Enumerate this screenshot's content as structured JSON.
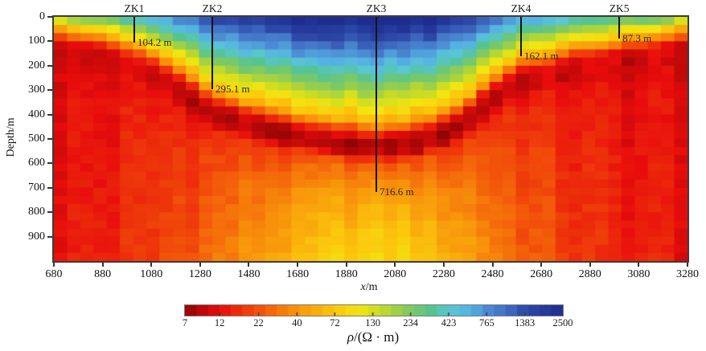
{
  "labels": {
    "y_axis": "Depth/m",
    "x_axis_italic": "x",
    "x_axis_rest": "/m",
    "colorbar_italic": "ρ",
    "colorbar_rest": "/(Ω · m)"
  },
  "chart_data": {
    "type": "heatmap",
    "title": "",
    "xlabel": "x/m",
    "ylabel": "Depth/m",
    "colorbar_label": "ρ/(Ω · m)",
    "x_range": [
      680,
      3280
    ],
    "depth_range": [
      0,
      1000
    ],
    "x_ticks": [
      680,
      880,
      1080,
      1280,
      1480,
      1680,
      1880,
      2080,
      2280,
      2480,
      2680,
      2880,
      3080,
      3280
    ],
    "depth_ticks": [
      0,
      100,
      200,
      300,
      400,
      500,
      600,
      700,
      800,
      900
    ],
    "colorbar": {
      "log_scale": true,
      "ticks": [
        7,
        12,
        22,
        40,
        72,
        130,
        234,
        423,
        765,
        1383,
        2500
      ],
      "segments": 33
    },
    "colormap_stops": [
      [
        7,
        "#8f0505"
      ],
      [
        12,
        "#e80c0c"
      ],
      [
        22,
        "#f2510a"
      ],
      [
        40,
        "#f8950b"
      ],
      [
        72,
        "#fbc60d"
      ],
      [
        105,
        "#f2e611"
      ],
      [
        140,
        "#cbdc23"
      ],
      [
        234,
        "#7ec963"
      ],
      [
        330,
        "#54c493"
      ],
      [
        423,
        "#5ac7d4"
      ],
      [
        600,
        "#55b1e2"
      ],
      [
        765,
        "#4b8cd3"
      ],
      [
        1100,
        "#3e68c0"
      ],
      [
        1383,
        "#2e4aa8"
      ],
      [
        2500,
        "#1d2d8f"
      ]
    ],
    "grid": {
      "cols": 48,
      "rows": 30
    },
    "boreholes": [
      {
        "name": "ZK1",
        "x": 1010,
        "depth_m": 104.2,
        "label": "104.2 m"
      },
      {
        "name": "ZK2",
        "x": 1330,
        "depth_m": 295.1,
        "label": "295.1 m"
      },
      {
        "name": "ZK3",
        "x": 2003,
        "depth_m": 716.6,
        "label": "716.6 m"
      },
      {
        "name": "ZK4",
        "x": 2597,
        "depth_m": 162.1,
        "label": "162.1 m"
      },
      {
        "name": "ZK5",
        "x": 3000,
        "depth_m": 87.3,
        "label": "87.3 m"
      }
    ],
    "interface_depth_profile": [
      [
        680,
        40
      ],
      [
        780,
        55
      ],
      [
        880,
        68
      ],
      [
        1010,
        104
      ],
      [
        1140,
        165
      ],
      [
        1240,
        230
      ],
      [
        1330,
        295
      ],
      [
        1440,
        330
      ],
      [
        1560,
        360
      ],
      [
        1700,
        390
      ],
      [
        1830,
        410
      ],
      [
        1950,
        428
      ],
      [
        2060,
        428
      ],
      [
        2170,
        408
      ],
      [
        2280,
        378
      ],
      [
        2370,
        330
      ],
      [
        2460,
        250
      ],
      [
        2600,
        162
      ],
      [
        2720,
        138
      ],
      [
        2820,
        112
      ],
      [
        3000,
        87
      ],
      [
        3120,
        68
      ],
      [
        3280,
        45
      ]
    ],
    "basal_resistivity_profile": [
      [
        680,
        13
      ],
      [
        880,
        14
      ],
      [
        1080,
        18
      ],
      [
        1280,
        26
      ],
      [
        1480,
        40
      ],
      [
        1680,
        60
      ],
      [
        1880,
        85
      ],
      [
        2080,
        88
      ],
      [
        2280,
        60
      ],
      [
        2480,
        34
      ],
      [
        2680,
        22
      ],
      [
        2880,
        16
      ],
      [
        3080,
        14
      ],
      [
        3280,
        13
      ]
    ],
    "model": {
      "interface_rho": 60,
      "sub_rho_log": 1.08,
      "deep_start_log": 1.04,
      "surf_base_log": 1.85,
      "surf_amp_log": 1.65,
      "surf_d_ref": 430,
      "dip_base": 0.05,
      "dip_amp": 0.11,
      "dip_d0": 120,
      "dip_d1": 430,
      "deep_exponent": 0.4,
      "col_jitter": 0.12,
      "cell_jitter": 0.09,
      "rho_min": 7,
      "rho_max": 2500
    }
  }
}
